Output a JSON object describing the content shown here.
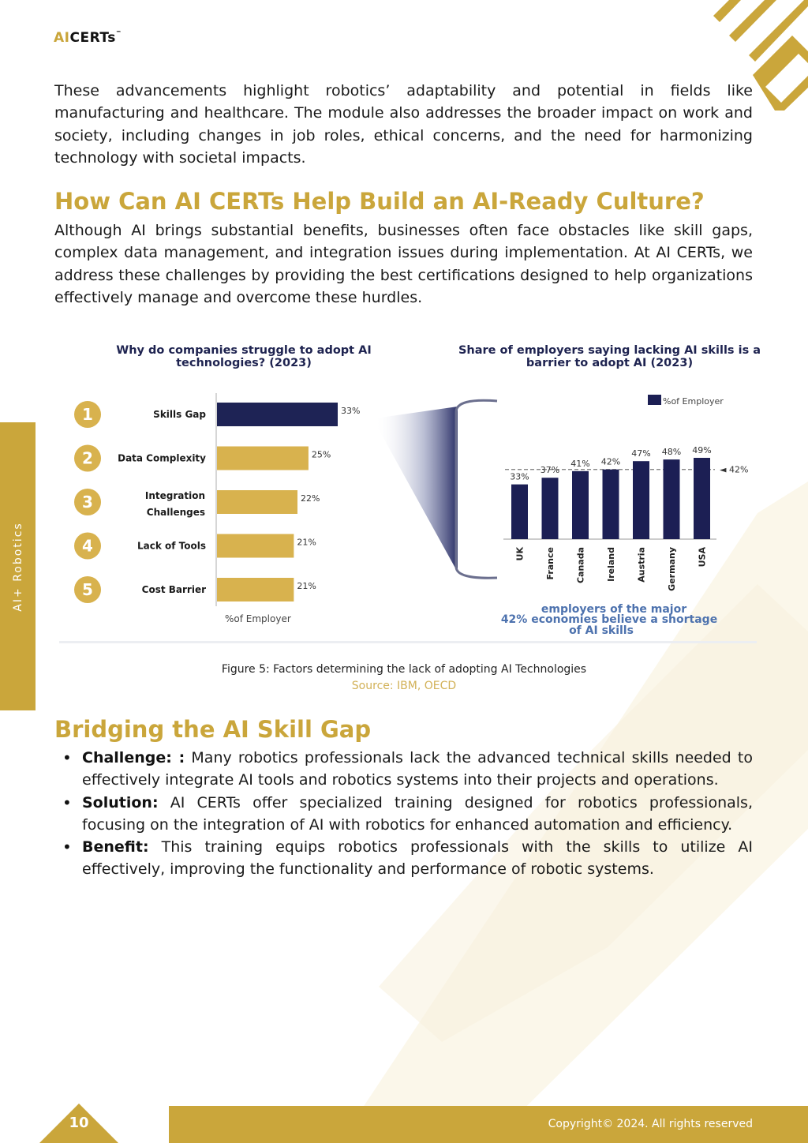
{
  "header": {
    "logo_ai": "AI",
    "logo_certs": "CERTs",
    "logo_tm": "™"
  },
  "side_tab": {
    "label": "AI+ Robotics"
  },
  "intro": {
    "paragraph": "These advancements highlight robotics’ adaptability and potential in fields like manufacturing and healthcare. The module also addresses the broader impact on work and society, including changes in job roles, ethical concerns, and the need for harmonizing technology with societal impacts."
  },
  "section1": {
    "heading": "How Can AI CERTs Help Build an AI-Ready Culture?",
    "paragraph": "Although AI brings substantial benefits, businesses often face obstacles like skill gaps, complex data management, and integration issues during implementation. At AI CERTs, we address these challenges by providing the best certifications designed to help organizations effectively manage and overcome these hurdles."
  },
  "chart_data": [
    {
      "type": "bar",
      "orientation": "horizontal",
      "title": "Why do companies struggle to adopt AI technologies? (2023)",
      "ranks": [
        "1",
        "2",
        "3",
        "4",
        "5"
      ],
      "categories": [
        "Skills Gap",
        "Data Complexity",
        "Integration Challenges",
        "Lack of Tools",
        "Cost Barrier"
      ],
      "values": [
        33,
        25,
        22,
        21,
        21
      ],
      "value_labels": [
        "33%",
        "25%",
        "22%",
        "21%",
        "21%"
      ],
      "xlabel": "%of Employer",
      "xlim": [
        0,
        40
      ],
      "colors": {
        "highlight": "#1e2355",
        "default": "#d8b24e",
        "rank_circle": "#d8b24e"
      }
    },
    {
      "type": "bar",
      "title": "Share of employers saying lacking AI skills is a barrier to adopt AI (2023)",
      "categories": [
        "UK",
        "France",
        "Canada",
        "Ireland",
        "Austria",
        "Germany",
        "USA"
      ],
      "values": [
        33,
        37,
        41,
        42,
        47,
        48,
        49
      ],
      "value_labels": [
        "33%",
        "37%",
        "41%",
        "42%",
        "47%",
        "48%",
        "49%"
      ],
      "legend": "%of Employer",
      "legend_position": "top-right",
      "reference_line": {
        "value": 42,
        "label": "◄ 42%"
      },
      "ylim": [
        0,
        55
      ],
      "annotation": [
        "employers of the major",
        "42% economies believe a shortage",
        "of AI skills"
      ],
      "colors": {
        "bars": "#1c1f54",
        "annotation": "#4d72ae"
      }
    }
  ],
  "figure": {
    "caption": "Figure 5: Factors determining the lack of adopting AI Technologies",
    "source": "Source: IBM, OECD"
  },
  "section2": {
    "heading": "Bridging the AI Skill Gap",
    "bullets": [
      {
        "label": "Challenge: :",
        "text": " Many robotics professionals lack the advanced technical skills needed to effectively integrate AI tools and robotics systems into their projects and operations."
      },
      {
        "label": "Solution:",
        "text": " AI CERTs offer specialized training designed for robotics professionals, focusing on the integration of AI with robotics for enhanced automation and efficiency."
      },
      {
        "label": "Benefit:",
        "text": " This training equips robotics professionals with the skills to utilize AI effectively, improving the functionality and performance of robotic systems."
      }
    ]
  },
  "footer": {
    "page_number": "10",
    "copyright": "Copyright© 2024. All rights reserved"
  },
  "colors": {
    "gold": "#caa63b",
    "navy": "#1e2350"
  }
}
